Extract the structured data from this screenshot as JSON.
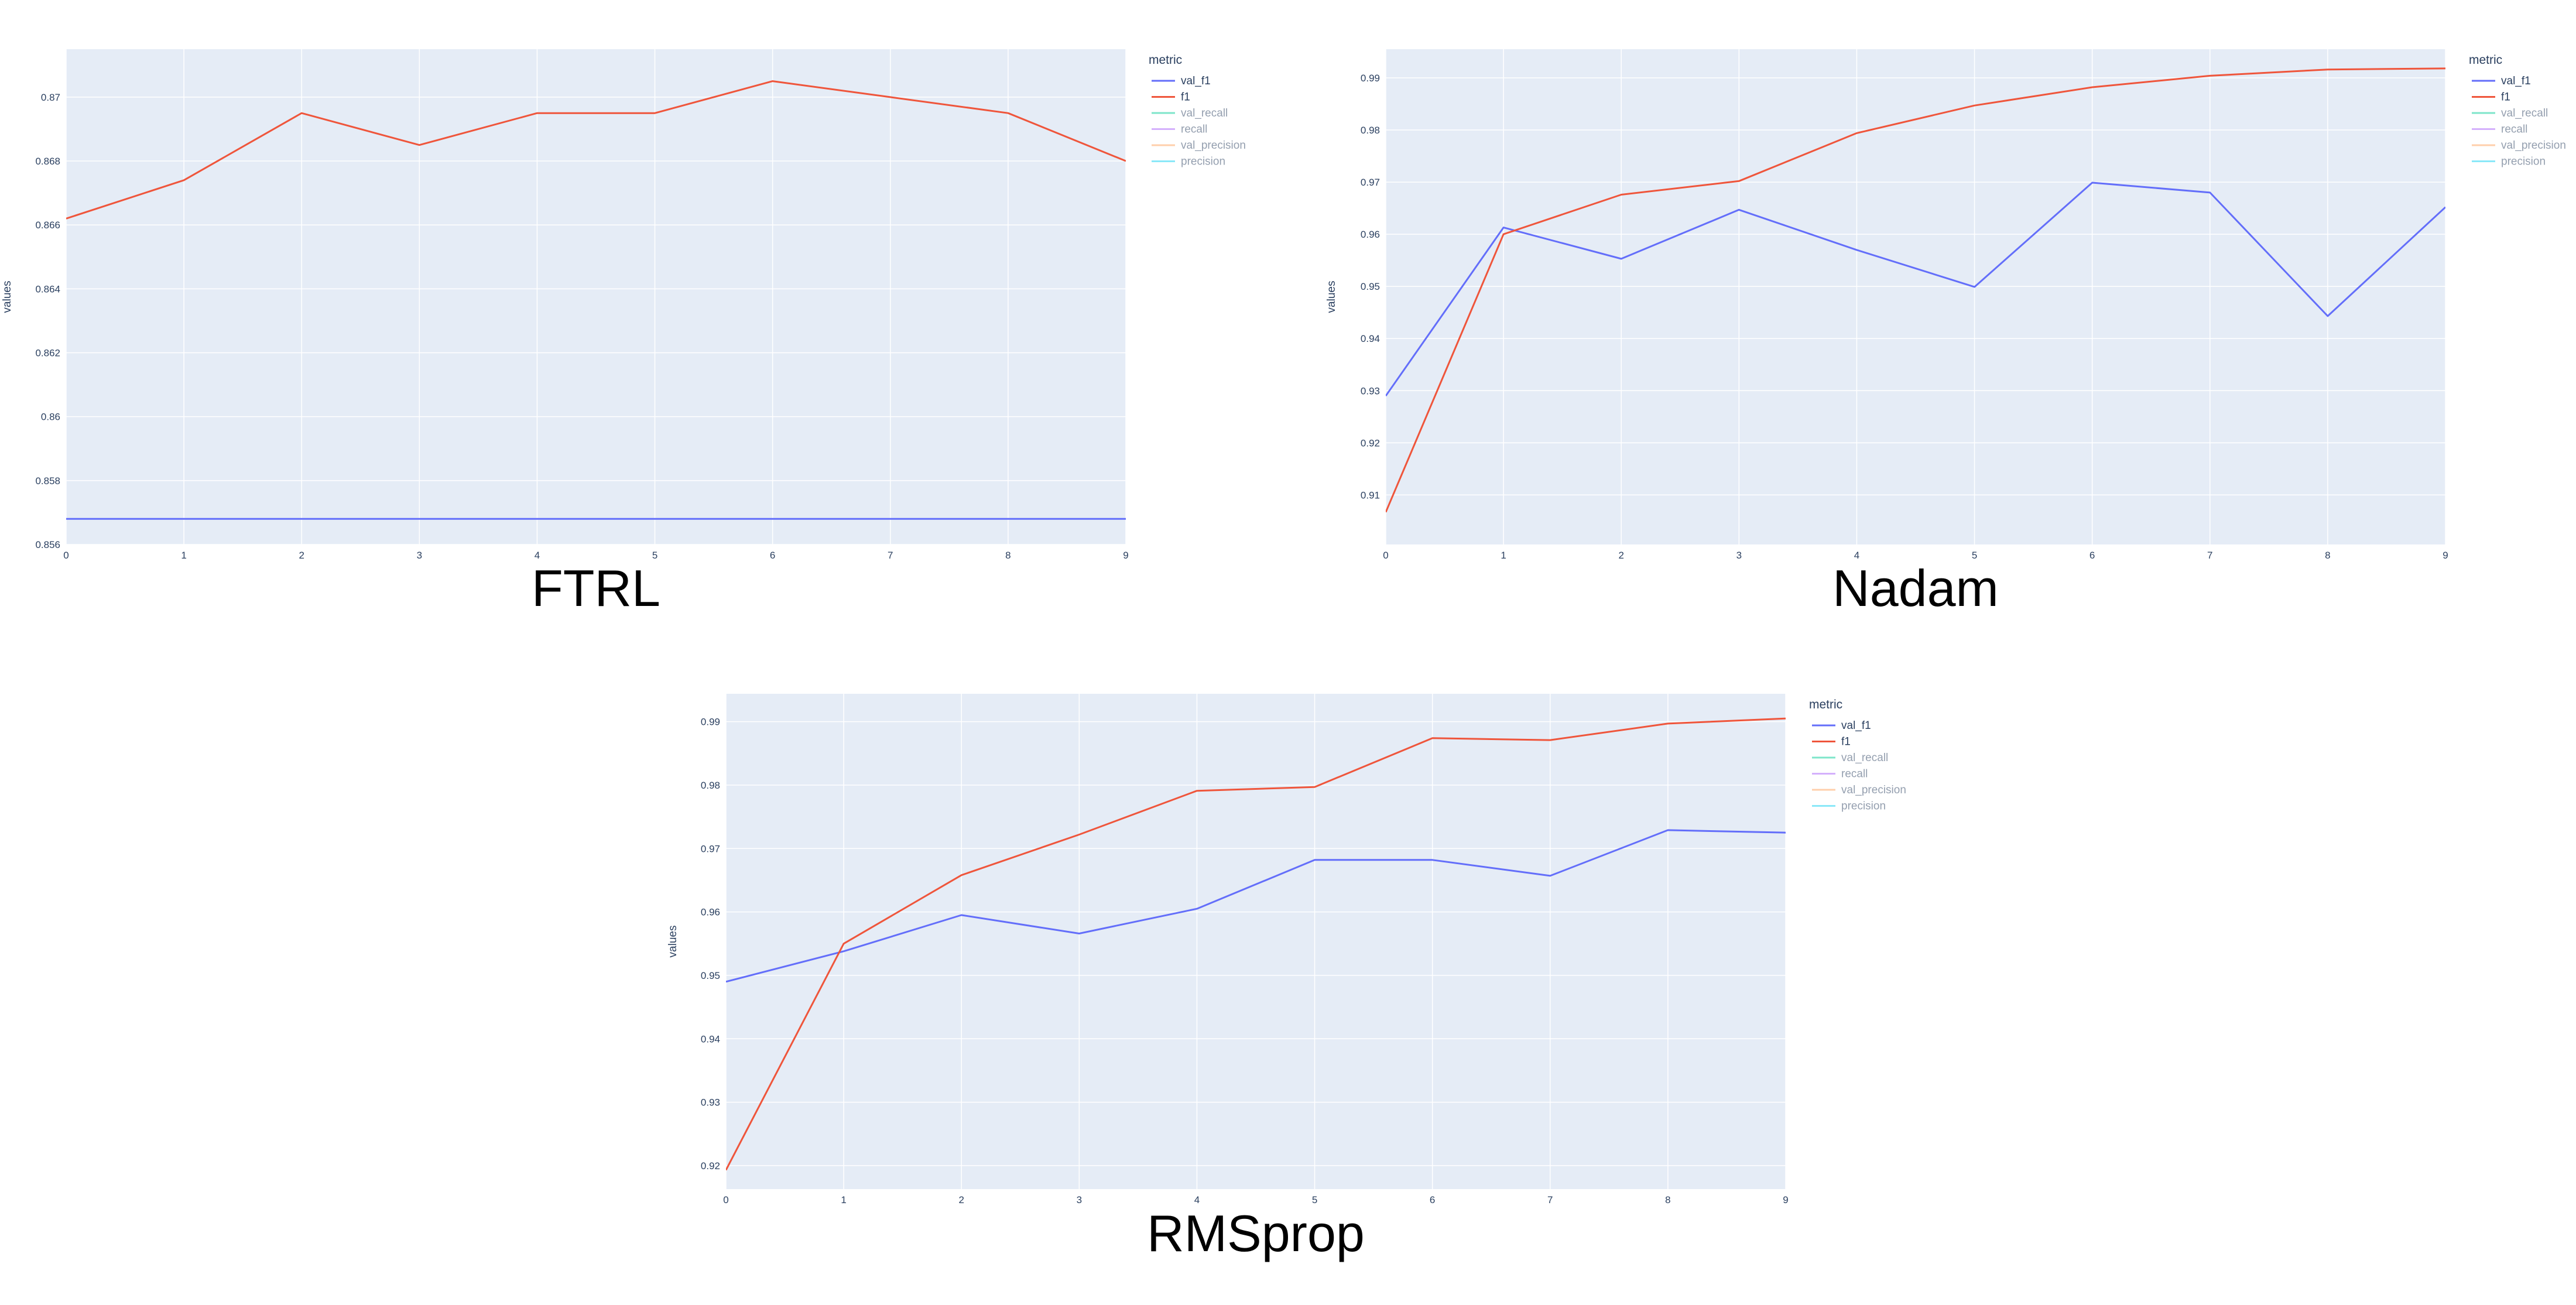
{
  "chart_data": [
    {
      "type": "line",
      "title": "FTRL",
      "xlabel": "",
      "ylabel": "values",
      "legend_title": "metric",
      "legend_position": "top-right",
      "grid": true,
      "x": [
        0,
        1,
        2,
        3,
        4,
        5,
        6,
        7,
        8,
        9
      ],
      "xlim": [
        0,
        9
      ],
      "ylim": [
        0.856,
        0.8715
      ],
      "xticks": [
        0,
        1,
        2,
        3,
        4,
        5,
        6,
        7,
        8,
        9
      ],
      "yticks": [
        0.856,
        0.858,
        0.86,
        0.862,
        0.864,
        0.866,
        0.868,
        0.87
      ],
      "ytick_labels": [
        "0.856",
        "0.858",
        "0.86",
        "0.862",
        "0.864",
        "0.866",
        "0.868",
        "0.87"
      ],
      "series": [
        {
          "name": "val_f1",
          "color": "#636efa",
          "visible": true,
          "values": [
            0.8568,
            0.8568,
            0.8568,
            0.8568,
            0.8568,
            0.8568,
            0.8568,
            0.8568,
            0.8568,
            0.8568
          ]
        },
        {
          "name": "f1",
          "color": "#ef553b",
          "visible": true,
          "values": [
            0.8662,
            0.8674,
            0.8695,
            0.8685,
            0.8695,
            0.8695,
            0.8705,
            0.87,
            0.8695,
            0.868
          ]
        },
        {
          "name": "val_recall",
          "color": "#00cc96",
          "visible": false
        },
        {
          "name": "recall",
          "color": "#ab63fa",
          "visible": false
        },
        {
          "name": "val_precision",
          "color": "#ffa15a",
          "visible": false
        },
        {
          "name": "precision",
          "color": "#19d3f3",
          "visible": false
        }
      ]
    },
    {
      "type": "line",
      "title": "Nadam",
      "xlabel": "",
      "ylabel": "values",
      "legend_title": "metric",
      "legend_position": "top-right",
      "grid": true,
      "x": [
        0,
        1,
        2,
        3,
        4,
        5,
        6,
        7,
        8,
        9
      ],
      "xlim": [
        0,
        9
      ],
      "ylim": [
        0.9005,
        0.9955
      ],
      "xticks": [
        0,
        1,
        2,
        3,
        4,
        5,
        6,
        7,
        8,
        9
      ],
      "yticks": [
        0.91,
        0.92,
        0.93,
        0.94,
        0.95,
        0.96,
        0.97,
        0.98,
        0.99
      ],
      "ytick_labels": [
        "0.91",
        "0.92",
        "0.93",
        "0.94",
        "0.95",
        "0.96",
        "0.97",
        "0.98",
        "0.99"
      ],
      "series": [
        {
          "name": "val_f1",
          "color": "#636efa",
          "visible": true,
          "values": [
            0.929,
            0.9613,
            0.9553,
            0.9647,
            0.957,
            0.9499,
            0.9699,
            0.968,
            0.9443,
            0.9652
          ]
        },
        {
          "name": "f1",
          "color": "#ef553b",
          "visible": true,
          "values": [
            0.9067,
            0.96,
            0.9676,
            0.9702,
            0.9794,
            0.9847,
            0.9882,
            0.9904,
            0.9916,
            0.9918
          ]
        },
        {
          "name": "val_recall",
          "color": "#00cc96",
          "visible": false
        },
        {
          "name": "recall",
          "color": "#ab63fa",
          "visible": false
        },
        {
          "name": "val_precision",
          "color": "#ffa15a",
          "visible": false
        },
        {
          "name": "precision",
          "color": "#19d3f3",
          "visible": false
        }
      ]
    },
    {
      "type": "line",
      "title": "RMSprop",
      "xlabel": "",
      "ylabel": "values",
      "legend_title": "metric",
      "legend_position": "top-right",
      "grid": true,
      "x": [
        0,
        1,
        2,
        3,
        4,
        5,
        6,
        7,
        8,
        9
      ],
      "xlim": [
        0,
        9
      ],
      "ylim": [
        0.9163,
        0.9944
      ],
      "xticks": [
        0,
        1,
        2,
        3,
        4,
        5,
        6,
        7,
        8,
        9
      ],
      "yticks": [
        0.92,
        0.93,
        0.94,
        0.95,
        0.96,
        0.97,
        0.98,
        0.99
      ],
      "ytick_labels": [
        "0.92",
        "0.93",
        "0.94",
        "0.95",
        "0.96",
        "0.97",
        "0.98",
        "0.99"
      ],
      "series": [
        {
          "name": "val_f1",
          "color": "#636efa",
          "visible": true,
          "values": [
            0.949,
            0.9538,
            0.9595,
            0.9566,
            0.9605,
            0.9682,
            0.9682,
            0.9657,
            0.9729,
            0.9725
          ]
        },
        {
          "name": "f1",
          "color": "#ef553b",
          "visible": true,
          "values": [
            0.9193,
            0.955,
            0.9658,
            0.9722,
            0.9791,
            0.9797,
            0.9874,
            0.9871,
            0.9897,
            0.9905
          ]
        },
        {
          "name": "val_recall",
          "color": "#00cc96",
          "visible": false
        },
        {
          "name": "recall",
          "color": "#ab63fa",
          "visible": false
        },
        {
          "name": "val_precision",
          "color": "#ffa15a",
          "visible": false
        },
        {
          "name": "precision",
          "color": "#19d3f3",
          "visible": false
        }
      ]
    }
  ]
}
